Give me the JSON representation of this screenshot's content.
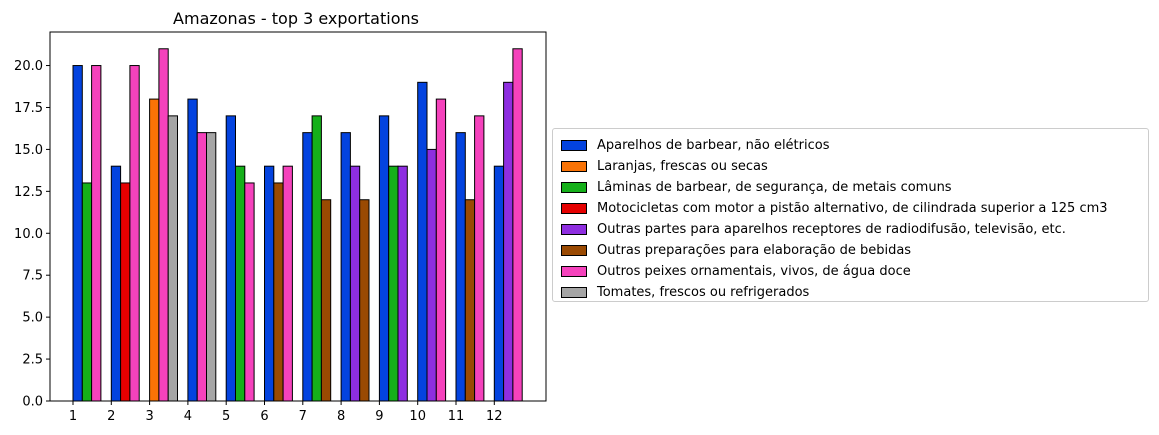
{
  "chart_data": {
    "type": "bar",
    "title": "Amazonas - top 3 exportations",
    "xlabel": "",
    "ylabel": "",
    "ylim": [
      0,
      22
    ],
    "yticks": [
      "0.0",
      "2.5",
      "5.0",
      "7.5",
      "10.0",
      "12.5",
      "15.0",
      "17.5",
      "20.0"
    ],
    "categories": [
      "1",
      "2",
      "3",
      "4",
      "5",
      "6",
      "7",
      "8",
      "9",
      "10",
      "11",
      "12"
    ],
    "legend_position": "right",
    "grid": false,
    "series": [
      {
        "name": "Aparelhos de barbear, não elétricos",
        "color": "#0343df",
        "values": [
          20,
          14,
          null,
          18,
          17,
          14,
          16,
          16,
          17,
          19,
          16,
          14
        ]
      },
      {
        "name": "Laranjas, frescas ou secas",
        "color": "#f97306",
        "values": [
          null,
          null,
          18,
          null,
          null,
          null,
          null,
          null,
          null,
          null,
          null,
          null
        ]
      },
      {
        "name": "Lâminas de barbear, de segurança, de metais comuns",
        "color": "#15b01a",
        "values": [
          13,
          null,
          null,
          null,
          14,
          null,
          17,
          null,
          14,
          null,
          null,
          null
        ]
      },
      {
        "name": "Motocicletas com motor a pistão alternativo, de cilindrada superior a 125 cm3",
        "color": "#e50000",
        "values": [
          null,
          13,
          null,
          null,
          null,
          null,
          null,
          null,
          null,
          null,
          null,
          null
        ]
      },
      {
        "name": "Outras partes para aparelhos receptores de radiodifusão, televisão, etc.",
        "color": "#8e2ee0",
        "values": [
          null,
          null,
          null,
          null,
          null,
          null,
          null,
          14,
          14,
          15,
          null,
          19
        ]
      },
      {
        "name": "Outras preparações para elaboração de bebidas",
        "color": "#9a4a02",
        "values": [
          null,
          null,
          null,
          null,
          null,
          13,
          12,
          12,
          null,
          null,
          12,
          null
        ]
      },
      {
        "name": "Outros peixes ornamentais, vivos, de água doce",
        "color": "#f542bc",
        "values": [
          20,
          20,
          21,
          16,
          13,
          14,
          null,
          null,
          null,
          18,
          17,
          21
        ]
      },
      {
        "name": "Tomates, frescos ou refrigerados",
        "color": "#a5a5a5",
        "values": [
          null,
          null,
          17,
          16,
          null,
          null,
          null,
          null,
          null,
          null,
          null,
          null
        ]
      }
    ]
  }
}
